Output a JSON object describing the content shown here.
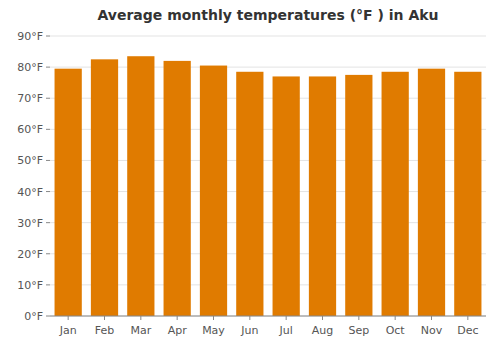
{
  "chart_data": {
    "type": "bar",
    "title": "Average monthly temperatures (°F ) in Aku",
    "categories": [
      "Jan",
      "Feb",
      "Mar",
      "Apr",
      "May",
      "Jun",
      "Jul",
      "Aug",
      "Sep",
      "Oct",
      "Nov",
      "Dec"
    ],
    "values": [
      79.5,
      82.5,
      83.5,
      82.0,
      80.5,
      78.5,
      77.0,
      77.0,
      77.5,
      78.5,
      79.5,
      78.5
    ],
    "color": "#E07B00",
    "ylim": [
      0,
      90
    ],
    "yticks": [
      {
        "value": 0,
        "label": "0°F"
      },
      {
        "value": 10,
        "label": "10°F"
      },
      {
        "value": 20,
        "label": "20°F"
      },
      {
        "value": 30,
        "label": "30°F"
      },
      {
        "value": 40,
        "label": "40°F"
      },
      {
        "value": 50,
        "label": "50°F"
      },
      {
        "value": 60,
        "label": "60°F"
      },
      {
        "value": 70,
        "label": "70°F"
      },
      {
        "value": 80,
        "label": "80°F"
      },
      {
        "value": 90,
        "label": "90°F"
      }
    ],
    "grid": true
  }
}
